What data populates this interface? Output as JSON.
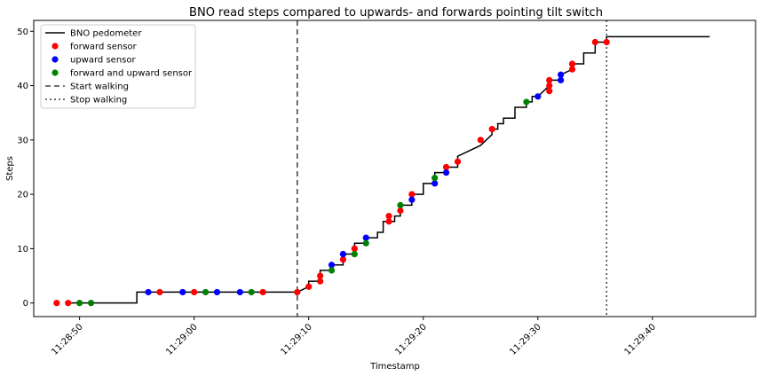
{
  "chart_data": {
    "type": "line",
    "title": "BNO read steps compared to upwards- and forwards pointing tilt switch",
    "xlabel": "Timestamp",
    "ylabel": "Steps",
    "xlim": [
      "11:28:46",
      "11:29:49"
    ],
    "ylim": [
      -2.5,
      52
    ],
    "x_ticks": [
      "11:28:50",
      "11:29:00",
      "11:29:10",
      "11:29:20",
      "11:29:30",
      "11:29:40"
    ],
    "y_ticks": [
      0,
      10,
      20,
      30,
      40,
      50
    ],
    "grid": false,
    "legend_position": "top-left",
    "series": [
      {
        "name": "BNO pedometer",
        "kind": "step-line",
        "color": "#000000",
        "points": [
          [
            "11:28:49",
            0
          ],
          [
            "11:28:55",
            0
          ],
          [
            "11:28:55",
            2
          ],
          [
            "11:29:09",
            2
          ],
          [
            "11:29:10",
            3
          ],
          [
            "11:29:10",
            4
          ],
          [
            "11:29:11",
            4
          ],
          [
            "11:29:11",
            6
          ],
          [
            "11:29:12",
            6
          ],
          [
            "11:29:12",
            7
          ],
          [
            "11:29:13",
            7
          ],
          [
            "11:29:13",
            9
          ],
          [
            "11:29:14",
            9
          ],
          [
            "11:29:14",
            11
          ],
          [
            "11:29:15",
            11
          ],
          [
            "11:29:15",
            12
          ],
          [
            "11:29:16",
            12
          ],
          [
            "11:29:16",
            13
          ],
          [
            "11:29:16.5",
            13
          ],
          [
            "11:29:16.5",
            15
          ],
          [
            "11:29:17.5",
            15
          ],
          [
            "11:29:17.5",
            16
          ],
          [
            "11:29:18",
            16
          ],
          [
            "11:29:18",
            18
          ],
          [
            "11:29:19",
            18
          ],
          [
            "11:29:19",
            20
          ],
          [
            "11:29:20",
            20
          ],
          [
            "11:29:20",
            22
          ],
          [
            "11:29:21",
            22
          ],
          [
            "11:29:21",
            24
          ],
          [
            "11:29:22",
            24
          ],
          [
            "11:29:22",
            25
          ],
          [
            "11:29:23",
            25
          ],
          [
            "11:29:23",
            27
          ],
          [
            "11:29:25",
            29
          ],
          [
            "11:29:26",
            31
          ],
          [
            "11:29:26",
            32
          ],
          [
            "11:29:26.5",
            32
          ],
          [
            "11:29:26.5",
            33
          ],
          [
            "11:29:27",
            33
          ],
          [
            "11:29:27",
            34
          ],
          [
            "11:29:28",
            34
          ],
          [
            "11:29:28",
            36
          ],
          [
            "11:29:29",
            36
          ],
          [
            "11:29:29",
            37
          ],
          [
            "11:29:29.5",
            37
          ],
          [
            "11:29:29.5",
            38
          ],
          [
            "11:29:30",
            38
          ],
          [
            "11:29:31",
            40
          ],
          [
            "11:29:31",
            41
          ],
          [
            "11:29:32",
            41
          ],
          [
            "11:29:32",
            42
          ],
          [
            "11:29:33",
            43
          ],
          [
            "11:29:33",
            44
          ],
          [
            "11:29:34",
            44
          ],
          [
            "11:29:34",
            46
          ],
          [
            "11:29:35",
            46
          ],
          [
            "11:29:35",
            48
          ],
          [
            "11:29:36",
            48
          ],
          [
            "11:29:36",
            49
          ],
          [
            "11:29:45",
            49
          ]
        ]
      },
      {
        "name": "forward sensor",
        "kind": "markers",
        "color": "#ff0000",
        "points": [
          [
            "11:28:48",
            0
          ],
          [
            "11:28:49",
            0
          ],
          [
            "11:28:57",
            2
          ],
          [
            "11:29:00",
            2
          ],
          [
            "11:29:06",
            2
          ],
          [
            "11:29:09",
            2
          ],
          [
            "11:29:10",
            3
          ],
          [
            "11:29:11",
            4
          ],
          [
            "11:29:11",
            5
          ],
          [
            "11:29:13",
            8
          ],
          [
            "11:29:14",
            10
          ],
          [
            "11:29:17",
            15
          ],
          [
            "11:29:17",
            16
          ],
          [
            "11:29:18",
            17
          ],
          [
            "11:29:19",
            20
          ],
          [
            "11:29:22",
            25
          ],
          [
            "11:29:23",
            26
          ],
          [
            "11:29:25",
            30
          ],
          [
            "11:29:26",
            32
          ],
          [
            "11:29:31",
            39
          ],
          [
            "11:29:31",
            40
          ],
          [
            "11:29:31",
            41
          ],
          [
            "11:29:33",
            43
          ],
          [
            "11:29:33",
            44
          ],
          [
            "11:29:35",
            48
          ],
          [
            "11:29:36",
            48
          ]
        ]
      },
      {
        "name": "upward sensor",
        "kind": "markers",
        "color": "#0000ff",
        "points": [
          [
            "11:28:56",
            2
          ],
          [
            "11:28:59",
            2
          ],
          [
            "11:29:02",
            2
          ],
          [
            "11:29:04",
            2
          ],
          [
            "11:29:12",
            7
          ],
          [
            "11:29:13",
            9
          ],
          [
            "11:29:15",
            12
          ],
          [
            "11:29:19",
            19
          ],
          [
            "11:29:21",
            22
          ],
          [
            "11:29:22",
            24
          ],
          [
            "11:29:30",
            38
          ],
          [
            "11:29:32",
            41
          ],
          [
            "11:29:32",
            42
          ]
        ]
      },
      {
        "name": "forward and upward sensor",
        "kind": "markers",
        "color": "#008000",
        "points": [
          [
            "11:28:50",
            0
          ],
          [
            "11:28:51",
            0
          ],
          [
            "11:29:01",
            2
          ],
          [
            "11:29:05",
            2
          ],
          [
            "11:29:12",
            6
          ],
          [
            "11:29:14",
            9
          ],
          [
            "11:29:15",
            11
          ],
          [
            "11:29:18",
            18
          ],
          [
            "11:29:21",
            23
          ],
          [
            "11:29:29",
            37
          ]
        ]
      },
      {
        "name": "Start walking",
        "kind": "vline",
        "color": "#404040",
        "dash": "dashed",
        "x": "11:29:09"
      },
      {
        "name": "Stop walking",
        "kind": "vline",
        "color": "#404040",
        "dash": "dotted",
        "x": "11:29:36"
      }
    ]
  }
}
